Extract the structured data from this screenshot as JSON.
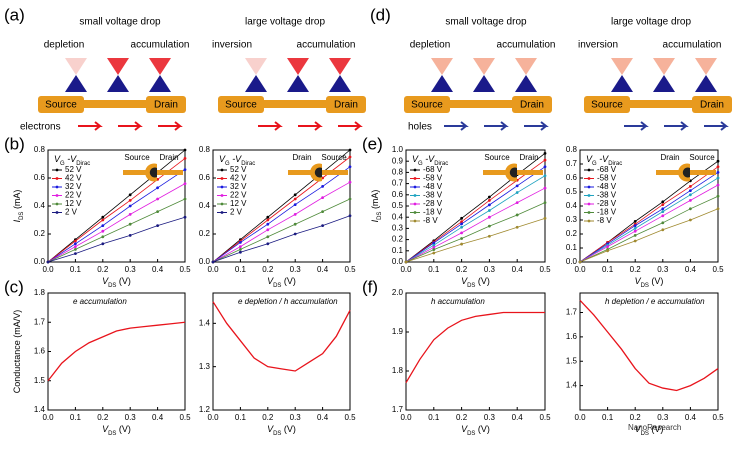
{
  "diagrams": [
    {
      "panel": "(a)",
      "titles": [
        "small voltage drop",
        "large voltage drop"
      ],
      "states": [
        "depletion",
        "accumulation",
        "inversion",
        "accumulation"
      ],
      "source": [
        "Source",
        "Source"
      ],
      "drain": [
        "Drain",
        "Drain"
      ],
      "carrier": "electrons",
      "carrier_color": "#e8141c"
    },
    {
      "panel": "(d)",
      "titles": [
        "small voltage drop",
        "large voltage drop"
      ],
      "states": [
        "depletion",
        "accumulation",
        "inversion",
        "accumulation"
      ],
      "source": [
        "Source",
        "Source"
      ],
      "drain": [
        "Drain",
        "Drain"
      ],
      "carrier": "holes",
      "carrier_color": "#2a3a9a"
    }
  ],
  "watermark": "NanoResearch",
  "chart_data": [
    {
      "type": "line",
      "panel": "(b)",
      "x": [
        0,
        0.1,
        0.2,
        0.3,
        0.4,
        0.5
      ],
      "xlim": [
        0,
        0.5
      ],
      "ylim": [
        0,
        0.8
      ],
      "xticks": [
        {
          "value": 0,
          "label": "0.0"
        },
        0.1,
        0.2,
        0.3,
        0.4,
        0.5
      ],
      "yticks": [
        {
          "value": 0,
          "label": "0.0"
        },
        0.2,
        0.4,
        0.6,
        0.8
      ],
      "xlabel": [
        "V",
        "DS",
        " (V)"
      ],
      "ylabel": [
        "I",
        "DS",
        " (mA)"
      ],
      "legend_title": [
        "V",
        "G",
        " -V",
        "Dirac"
      ],
      "inset": [
        "Source",
        "Drain"
      ],
      "markers": true,
      "series": [
        {
          "name": "52 V",
          "color": "#000000",
          "values": [
            0,
            0.16,
            0.32,
            0.48,
            0.64,
            0.8
          ]
        },
        {
          "name": "42 V",
          "color": "#e8141c",
          "values": [
            0,
            0.15,
            0.3,
            0.44,
            0.59,
            0.74
          ]
        },
        {
          "name": "32 V",
          "color": "#1a1adf",
          "values": [
            0,
            0.13,
            0.26,
            0.4,
            0.53,
            0.66
          ]
        },
        {
          "name": "22 V",
          "color": "#e01ee0",
          "values": [
            0,
            0.11,
            0.22,
            0.34,
            0.45,
            0.56
          ]
        },
        {
          "name": "12 V",
          "color": "#4f8a3a",
          "values": [
            0,
            0.09,
            0.18,
            0.27,
            0.36,
            0.45
          ]
        },
        {
          "name": "2 V",
          "color": "#1a1a80",
          "values": [
            0,
            0.06,
            0.13,
            0.19,
            0.26,
            0.32
          ]
        }
      ]
    },
    {
      "type": "line",
      "x": [
        0,
        0.1,
        0.2,
        0.3,
        0.4,
        0.5
      ],
      "xlim": [
        0,
        0.5
      ],
      "ylim": [
        0,
        0.8
      ],
      "xticks": [
        {
          "value": 0,
          "label": "0.0"
        },
        0.1,
        0.2,
        0.3,
        0.4,
        0.5
      ],
      "yticks": [
        {
          "value": 0,
          "label": "0.0"
        },
        0.2,
        0.4,
        0.6,
        0.8
      ],
      "xlabel": [
        "V",
        "DS",
        " (V)"
      ],
      "legend_title": [
        "V",
        "G",
        " -V",
        "Dirac"
      ],
      "inset": [
        "Drain",
        "Source"
      ],
      "markers": true,
      "series": [
        {
          "name": "52 V",
          "color": "#000000",
          "values": [
            0,
            0.16,
            0.32,
            0.48,
            0.64,
            0.8
          ]
        },
        {
          "name": "42 V",
          "color": "#e8141c",
          "values": [
            0,
            0.15,
            0.3,
            0.45,
            0.6,
            0.75
          ]
        },
        {
          "name": "32 V",
          "color": "#1a1adf",
          "values": [
            0,
            0.14,
            0.27,
            0.41,
            0.54,
            0.68
          ]
        },
        {
          "name": "22 V",
          "color": "#e01ee0",
          "values": [
            0,
            0.11,
            0.23,
            0.34,
            0.46,
            0.57
          ]
        },
        {
          "name": "12 V",
          "color": "#4f8a3a",
          "values": [
            0,
            0.09,
            0.18,
            0.27,
            0.36,
            0.45
          ]
        },
        {
          "name": "2 V",
          "color": "#1a1a80",
          "values": [
            0,
            0.07,
            0.13,
            0.2,
            0.26,
            0.33
          ]
        }
      ]
    },
    {
      "type": "line",
      "panel": "(c)",
      "x": [
        0,
        0.05,
        0.1,
        0.15,
        0.2,
        0.25,
        0.3,
        0.35,
        0.4,
        0.45,
        0.5
      ],
      "xlim": [
        0,
        0.5
      ],
      "ylim": [
        1.4,
        1.8
      ],
      "xticks": [
        {
          "value": 0,
          "label": "0.0"
        },
        0.1,
        0.2,
        0.3,
        0.4,
        0.5
      ],
      "yticks": [
        1.4,
        1.5,
        1.6,
        1.7,
        1.8
      ],
      "xlabel": [
        "V",
        "DS",
        " (V)"
      ],
      "ylabel": [
        "Conductance (mA/V)"
      ],
      "annotation": "e accumulation",
      "series": [
        {
          "color": "#e8141c",
          "values": [
            1.5,
            1.56,
            1.6,
            1.63,
            1.65,
            1.67,
            1.68,
            1.685,
            1.69,
            1.695,
            1.7
          ]
        }
      ]
    },
    {
      "type": "line",
      "x": [
        0,
        0.05,
        0.1,
        0.15,
        0.2,
        0.25,
        0.3,
        0.35,
        0.4,
        0.45,
        0.5
      ],
      "xlim": [
        0,
        0.5
      ],
      "ylim": [
        1.2,
        1.47
      ],
      "xticks": [
        {
          "value": 0,
          "label": "0.0"
        },
        0.1,
        0.2,
        0.3,
        0.4,
        0.5
      ],
      "yticks": [
        1.2,
        1.3,
        1.4
      ],
      "xlabel": [
        "V",
        "DS",
        " (V)"
      ],
      "annotation": "e depletion / h accumulation",
      "series": [
        {
          "color": "#e8141c",
          "values": [
            1.45,
            1.4,
            1.36,
            1.32,
            1.3,
            1.295,
            1.29,
            1.31,
            1.33,
            1.37,
            1.43
          ]
        }
      ]
    },
    {
      "type": "line",
      "panel": "(e)",
      "x": [
        0,
        0.1,
        0.2,
        0.3,
        0.4,
        0.5
      ],
      "xlim": [
        0,
        0.5
      ],
      "ylim": [
        0,
        1.0
      ],
      "xticks": [
        {
          "value": 0,
          "label": "0.0"
        },
        0.1,
        0.2,
        0.3,
        0.4,
        0.5
      ],
      "yticks": [
        {
          "value": 0,
          "label": "0.0"
        },
        0.1,
        0.2,
        0.3,
        0.4,
        0.5,
        0.6,
        0.7,
        0.8,
        0.9,
        {
          "value": 1.0,
          "label": "1.0"
        }
      ],
      "xlabel": [
        "V",
        "DS",
        " (V)"
      ],
      "ylabel": [
        "I",
        "DS",
        " (mA)"
      ],
      "legend_title": [
        "V",
        "G",
        " -V",
        "Dirac"
      ],
      "inset": [
        "Source",
        "Drain"
      ],
      "markers": true,
      "series": [
        {
          "name": "-68 V",
          "color": "#000000",
          "values": [
            0,
            0.19,
            0.39,
            0.58,
            0.78,
            0.97
          ]
        },
        {
          "name": "-58 V",
          "color": "#e8141c",
          "values": [
            0,
            0.18,
            0.36,
            0.55,
            0.73,
            0.91
          ]
        },
        {
          "name": "-48 V",
          "color": "#1a1adf",
          "values": [
            0,
            0.17,
            0.34,
            0.51,
            0.68,
            0.85
          ]
        },
        {
          "name": "-38 V",
          "color": "#1fa3c0",
          "values": [
            0,
            0.15,
            0.31,
            0.46,
            0.62,
            0.77
          ]
        },
        {
          "name": "-28 V",
          "color": "#e01ee0",
          "values": [
            0,
            0.13,
            0.26,
            0.4,
            0.53,
            0.66
          ]
        },
        {
          "name": "-18 V",
          "color": "#4f8a3a",
          "values": [
            0,
            0.11,
            0.21,
            0.32,
            0.42,
            0.53
          ]
        },
        {
          "name": "-8 V",
          "color": "#a08a30",
          "values": [
            0,
            0.08,
            0.16,
            0.23,
            0.31,
            0.39
          ]
        }
      ]
    },
    {
      "type": "line",
      "x": [
        0,
        0.1,
        0.2,
        0.3,
        0.4,
        0.5
      ],
      "xlim": [
        0,
        0.5
      ],
      "ylim": [
        0,
        0.8
      ],
      "xticks": [
        {
          "value": 0,
          "label": "0.0"
        },
        0.1,
        0.2,
        0.3,
        0.4,
        0.5
      ],
      "yticks": [
        {
          "value": 0,
          "label": "0.0"
        },
        0.1,
        0.2,
        0.3,
        0.4,
        0.5,
        0.6,
        0.7,
        0.8
      ],
      "xlabel": [
        "V",
        "DS",
        " (V)"
      ],
      "legend_title": [
        "V",
        "G",
        " -V",
        "Dirac"
      ],
      "inset": [
        "Drain",
        "Source"
      ],
      "markers": true,
      "series": [
        {
          "name": "-68 V",
          "color": "#000000",
          "values": [
            0,
            0.14,
            0.29,
            0.43,
            0.58,
            0.72
          ]
        },
        {
          "name": "-58 V",
          "color": "#e8141c",
          "values": [
            0,
            0.14,
            0.27,
            0.41,
            0.54,
            0.68
          ]
        },
        {
          "name": "-48 V",
          "color": "#1a1adf",
          "values": [
            0,
            0.13,
            0.26,
            0.38,
            0.51,
            0.64
          ]
        },
        {
          "name": "-38 V",
          "color": "#1fa3c0",
          "values": [
            0,
            0.12,
            0.24,
            0.36,
            0.48,
            0.6
          ]
        },
        {
          "name": "-28 V",
          "color": "#e01ee0",
          "values": [
            0,
            0.11,
            0.22,
            0.33,
            0.44,
            0.55
          ]
        },
        {
          "name": "-18 V",
          "color": "#4f8a3a",
          "values": [
            0,
            0.09,
            0.19,
            0.28,
            0.38,
            0.47
          ]
        },
        {
          "name": "-8 V",
          "color": "#a08a30",
          "values": [
            0,
            0.08,
            0.15,
            0.23,
            0.3,
            0.38
          ]
        }
      ]
    },
    {
      "type": "line",
      "panel": "(f)",
      "x": [
        0,
        0.05,
        0.1,
        0.15,
        0.2,
        0.25,
        0.3,
        0.35,
        0.4,
        0.45,
        0.5
      ],
      "xlim": [
        0,
        0.5
      ],
      "ylim": [
        1.7,
        2.0
      ],
      "xticks": [
        {
          "value": 0,
          "label": "0.0"
        },
        0.1,
        0.2,
        0.3,
        0.4,
        0.5
      ],
      "yticks": [
        1.7,
        1.8,
        1.9,
        {
          "value": 2.0,
          "label": "2.0"
        }
      ],
      "xlabel": [
        "V",
        "DS",
        " (V)"
      ],
      "annotation": "h accumulation",
      "series": [
        {
          "color": "#e8141c",
          "values": [
            1.77,
            1.83,
            1.88,
            1.91,
            1.93,
            1.94,
            1.945,
            1.95,
            1.95,
            1.95,
            1.95
          ]
        }
      ]
    },
    {
      "type": "line",
      "x": [
        0,
        0.05,
        0.1,
        0.15,
        0.2,
        0.25,
        0.3,
        0.35,
        0.4,
        0.45,
        0.5
      ],
      "xlim": [
        0,
        0.5
      ],
      "ylim": [
        1.3,
        1.78
      ],
      "xticks": [
        {
          "value": 0,
          "label": "0.0"
        },
        0.1,
        0.2,
        0.3,
        0.4,
        0.5
      ],
      "yticks": [
        1.4,
        1.5,
        1.6,
        1.7
      ],
      "xlabel": [
        "V",
        "DS",
        " (V)"
      ],
      "annotation": "h depletion / e accumulation",
      "series": [
        {
          "color": "#e8141c",
          "values": [
            1.75,
            1.69,
            1.62,
            1.55,
            1.47,
            1.41,
            1.39,
            1.38,
            1.4,
            1.43,
            1.47
          ]
        }
      ]
    }
  ]
}
